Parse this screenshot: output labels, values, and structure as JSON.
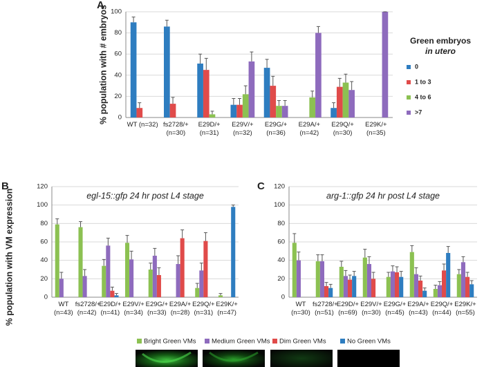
{
  "chart_data": [
    {
      "type": "bar",
      "panel": "A",
      "ylabel": "% population with # embryos",
      "legend_title": "Green embryos",
      "legend_subtitle": "in utero",
      "categories": [
        "WT (n=32)",
        "fs2728/+ (n=30)",
        "E29D/+ (n=31)",
        "E29V/+ (n=32)",
        "E29G/+ (n=36)",
        "E29A/+ (n=42)",
        "E29Q/+ (n=30)",
        "E29K/+ (n=35)"
      ],
      "ylim": [
        0,
        100
      ],
      "yticks": [
        0,
        20,
        40,
        60,
        80,
        100
      ],
      "grid": true,
      "series": [
        {
          "name": "0",
          "color": "#2e7dc0",
          "values": [
            90,
            86,
            51,
            12,
            47,
            null,
            9,
            null
          ],
          "errors": [
            5,
            6,
            9,
            6,
            8,
            null,
            5,
            null
          ]
        },
        {
          "name": "1 to 3",
          "color": "#e04b4a",
          "values": [
            9,
            13,
            45,
            12,
            30,
            null,
            29,
            null
          ],
          "errors": [
            5,
            6,
            11,
            6,
            9,
            null,
            8,
            null
          ]
        },
        {
          "name": "4 to 6",
          "color": "#8cc152",
          "values": [
            null,
            null,
            3,
            22,
            11,
            19,
            33,
            null
          ],
          "errors": [
            null,
            null,
            3,
            8,
            5,
            6,
            8,
            null
          ]
        },
        {
          "name": ">7",
          "color": "#8e6bbd",
          "values": [
            null,
            null,
            null,
            53,
            11,
            80,
            26,
            100
          ],
          "errors": [
            null,
            null,
            null,
            9,
            5,
            6,
            8,
            0
          ]
        }
      ]
    },
    {
      "type": "bar",
      "panel": "B",
      "title": "egl-15::gfp 24 hr post L4 stage",
      "ylabel": "% population with VM expression",
      "categories": [
        "WT (n=43)",
        "fs2728/+ (n=42)",
        "E29D/+ (n=41)",
        "E29V/+ (n=34)",
        "E29G/+ (n=33)",
        "E29A/+ (n=28)",
        "E29Q/+ (n=31)",
        "E29K/+ (n=47)"
      ],
      "ylim": [
        0,
        120
      ],
      "yticks": [
        0,
        20,
        40,
        60,
        80,
        100,
        120
      ],
      "grid": true,
      "series": [
        {
          "name": "Bright Green VMs",
          "color": "#8cc152",
          "values": [
            79,
            76,
            34,
            59,
            30,
            null,
            10,
            2
          ],
          "errors": [
            6,
            6,
            7,
            8,
            7,
            null,
            5,
            2
          ]
        },
        {
          "name": "Medium Green VMs",
          "color": "#8e6bbd",
          "values": [
            20,
            23,
            56,
            41,
            45,
            36,
            29,
            null
          ],
          "errors": [
            7,
            7,
            8,
            9,
            8,
            9,
            8,
            null
          ]
        },
        {
          "name": "Dim Green VMs",
          "color": "#e04b4a",
          "values": [
            null,
            null,
            7,
            null,
            24,
            64,
            61,
            null
          ],
          "errors": [
            null,
            null,
            4,
            null,
            8,
            9,
            9,
            null
          ]
        },
        {
          "name": "No Green VMs",
          "color": "#2e7dc0",
          "values": [
            null,
            null,
            2,
            null,
            null,
            null,
            null,
            98
          ],
          "errors": [
            null,
            null,
            2,
            null,
            null,
            null,
            null,
            2
          ]
        }
      ]
    },
    {
      "type": "bar",
      "panel": "C",
      "title": "arg-1::gfp 24 hr post L4 stage",
      "categories": [
        "WT (n=30)",
        "fs2728/+ (n=51)",
        "E29D/+ (n=69)",
        "E29V/+ (n=30)",
        "E29G/+ (n=45)",
        "E29A/+ (n=43)",
        "E29Q/+ (n=44)",
        "E29K/+ (n=55)"
      ],
      "ylim": [
        0,
        120
      ],
      "yticks": [
        0,
        20,
        40,
        60,
        80,
        100,
        120
      ],
      "grid": true,
      "series": [
        {
          "name": "Bright Green VMs",
          "color": "#8cc152",
          "values": [
            59,
            39,
            33,
            43,
            22,
            49,
            9,
            25
          ],
          "errors": [
            10,
            7,
            6,
            9,
            5,
            7,
            4,
            5
          ]
        },
        {
          "name": "Medium Green VMs",
          "color": "#8e6bbd",
          "values": [
            40,
            39,
            23,
            36,
            28,
            25,
            13,
            38
          ],
          "errors": [
            9,
            7,
            6,
            8,
            6,
            7,
            4,
            6
          ]
        },
        {
          "name": "Dim Green VMs",
          "color": "#e04b4a",
          "values": [
            null,
            12,
            19,
            20,
            27,
            18,
            29,
            22
          ],
          "errors": [
            null,
            4,
            5,
            7,
            6,
            5,
            7,
            5
          ]
        },
        {
          "name": "No Green VMs",
          "color": "#2e7dc0",
          "values": [
            null,
            10,
            23,
            null,
            22,
            7,
            48,
            14
          ],
          "errors": [
            null,
            4,
            5,
            null,
            6,
            3,
            7,
            4
          ]
        }
      ]
    }
  ]
}
